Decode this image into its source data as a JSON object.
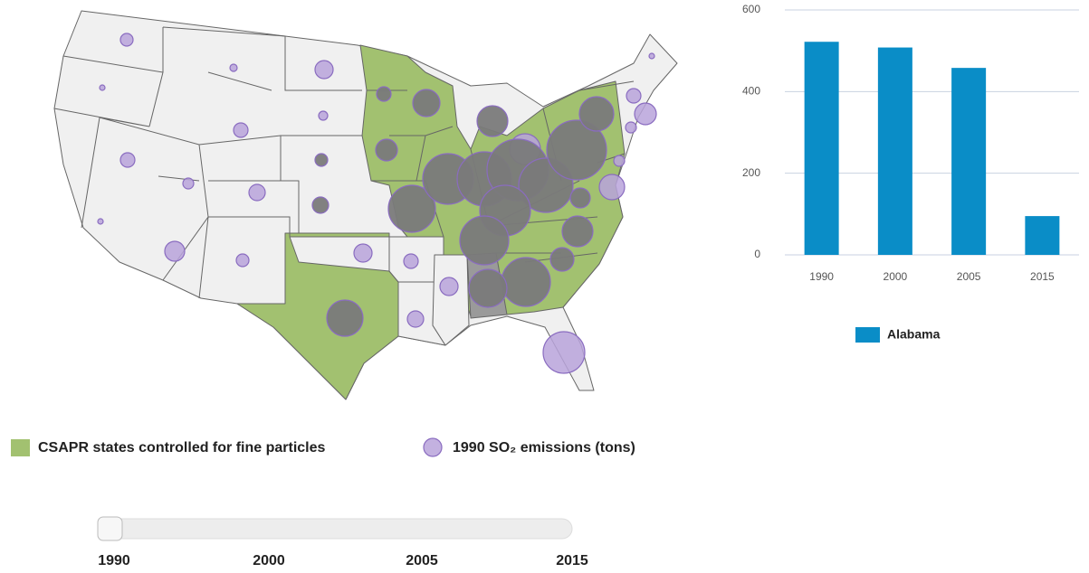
{
  "map": {
    "legend": {
      "controlled": "CSAPR states controlled for fine particles",
      "emissions": "1990 SO₂ emissions (tons)"
    }
  },
  "chart_data": {
    "type": "bar",
    "categories": [
      "1990",
      "2000",
      "2005",
      "2015"
    ],
    "series": [
      {
        "name": "Alabama",
        "color": "#0a8dc7",
        "values": [
          522,
          508,
          458,
          95
        ]
      }
    ],
    "ylim": [
      0,
      600
    ],
    "yticks": [
      0,
      200,
      400,
      600
    ],
    "grid": true
  },
  "slider": {
    "labels": [
      "1990",
      "2000",
      "2005",
      "2015"
    ]
  }
}
